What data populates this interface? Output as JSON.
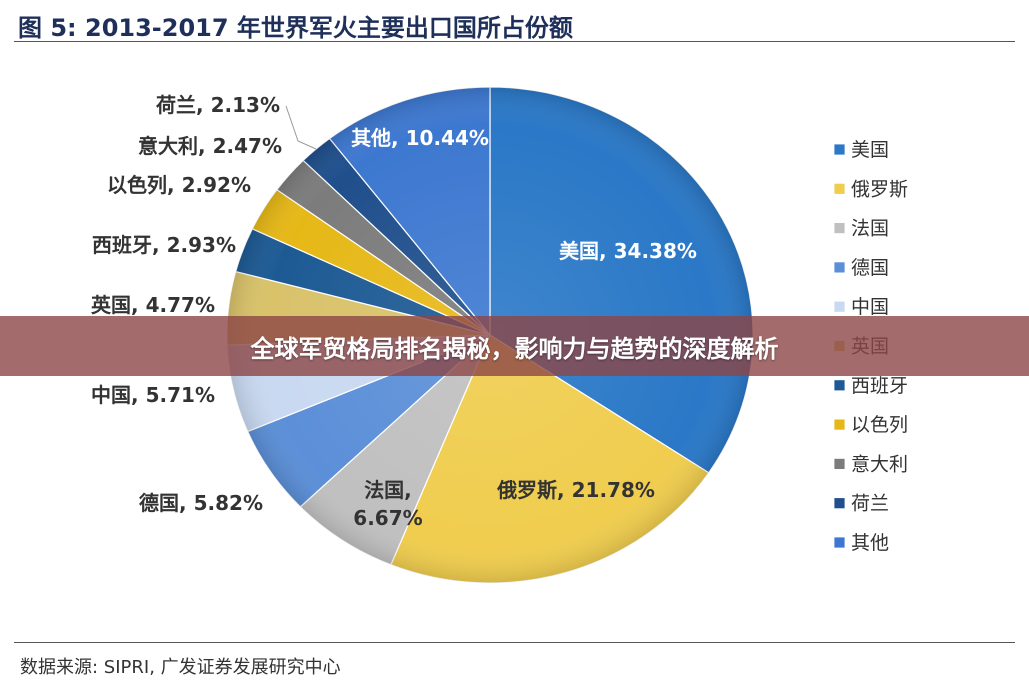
{
  "page": {
    "title": "图 5:  2013-2017 年世界军火主要出口国所占份额",
    "source": "数据来源:  SIPRI,  广发证券发展研究中心",
    "banner": "全球军贸格局排名揭秘，影响力与趋势的深度解析"
  },
  "chart_data": {
    "type": "pie",
    "title": "图 5:  2013-2017 年世界军火主要出口国所占份额",
    "legend_position": "right",
    "label_format": "{name}, {value}%",
    "slices": [
      {
        "name": "美国",
        "value": 34.38,
        "color": "#2a78c7"
      },
      {
        "name": "俄罗斯",
        "value": 21.78,
        "color": "#f0cd4e"
      },
      {
        "name": "法国",
        "value": 6.67,
        "color": "#c0c0c0"
      },
      {
        "name": "德国",
        "value": 5.82,
        "color": "#5b8fd8"
      },
      {
        "name": "中国",
        "value": 5.71,
        "color": "#c9d9f1"
      },
      {
        "name": "英国",
        "value": 4.77,
        "color": "#d9c26a"
      },
      {
        "name": "西班牙",
        "value": 2.93,
        "color": "#1d5a94"
      },
      {
        "name": "以色列",
        "value": 2.92,
        "color": "#e6b817"
      },
      {
        "name": "意大利",
        "value": 2.47,
        "color": "#7c7c7c"
      },
      {
        "name": "荷兰",
        "value": 2.13,
        "color": "#1f4f8c"
      },
      {
        "name": "其他",
        "value": 10.44,
        "color": "#3d78d0"
      }
    ]
  }
}
